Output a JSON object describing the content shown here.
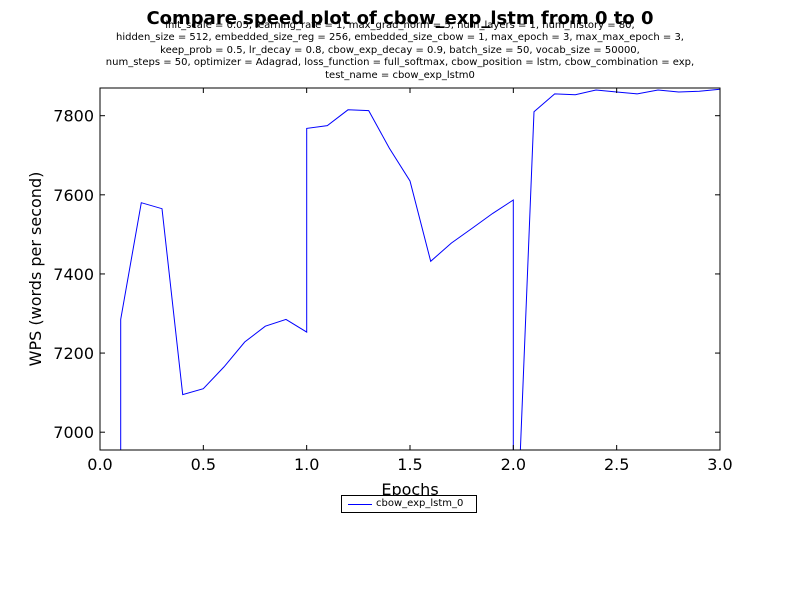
{
  "title": "Compare speed plot of cbow_exp_lstm from 0 to 0",
  "params": [
    "init_scale = 0.05, learning_rate = 1, max_grad_norm = 5, num_layers = 1, num_history = 80,",
    "hidden_size = 512, embedded_size_reg = 256, embedded_size_cbow = 1, max_epoch = 3, max_max_epoch = 3,",
    "keep_prob = 0.5, lr_decay = 0.8, cbow_exp_decay = 0.9, batch_size = 50, vocab_size = 50000,",
    "num_steps = 50, optimizer = Adagrad, loss_function = full_softmax, cbow_position = lstm, cbow_combination = exp,",
    "test_name = cbow_exp_lstm0"
  ],
  "chart_data": {
    "type": "line",
    "title": "Compare speed plot of cbow_exp_lstm from 0 to 0",
    "xlabel": "Epochs",
    "ylabel": "WPS (words per second)",
    "xlim": [
      0.0,
      3.0
    ],
    "ylim": [
      6955,
      7870
    ],
    "xticks": [
      0.0,
      0.5,
      1.0,
      1.5,
      2.0,
      2.5,
      3.0
    ],
    "xtick_labels": [
      "0.0",
      "0.5",
      "1.0",
      "1.5",
      "2.0",
      "2.5",
      "3.0"
    ],
    "yticks": [
      7000,
      7200,
      7400,
      7600,
      7800
    ],
    "ytick_labels": [
      "7000",
      "7200",
      "7400",
      "7600",
      "7800"
    ],
    "grid": false,
    "legend_position": "below-center",
    "series": [
      {
        "name": "cbow_exp_lstm_0",
        "color": "#0000ff",
        "x": [
          0.1,
          0.1,
          0.2,
          0.3,
          0.4,
          0.5,
          0.6,
          0.7,
          0.8,
          0.9,
          1.0,
          1.0,
          1.1,
          1.2,
          1.3,
          1.4,
          1.5,
          1.6,
          1.7,
          1.8,
          1.9,
          2.0,
          2.0,
          2.03,
          2.1,
          2.2,
          2.3,
          2.4,
          2.5,
          2.6,
          2.7,
          2.8,
          2.9,
          3.0
        ],
        "y": [
          6900,
          7285,
          7580,
          7565,
          7095,
          7110,
          7165,
          7228,
          7268,
          7285,
          7253,
          7768,
          7775,
          7815,
          7813,
          7718,
          7635,
          7432,
          7478,
          7515,
          7553,
          7587,
          6900,
          6900,
          7810,
          7855,
          7853,
          7865,
          7860,
          7855,
          7865,
          7860,
          7862,
          7867
        ]
      }
    ]
  }
}
